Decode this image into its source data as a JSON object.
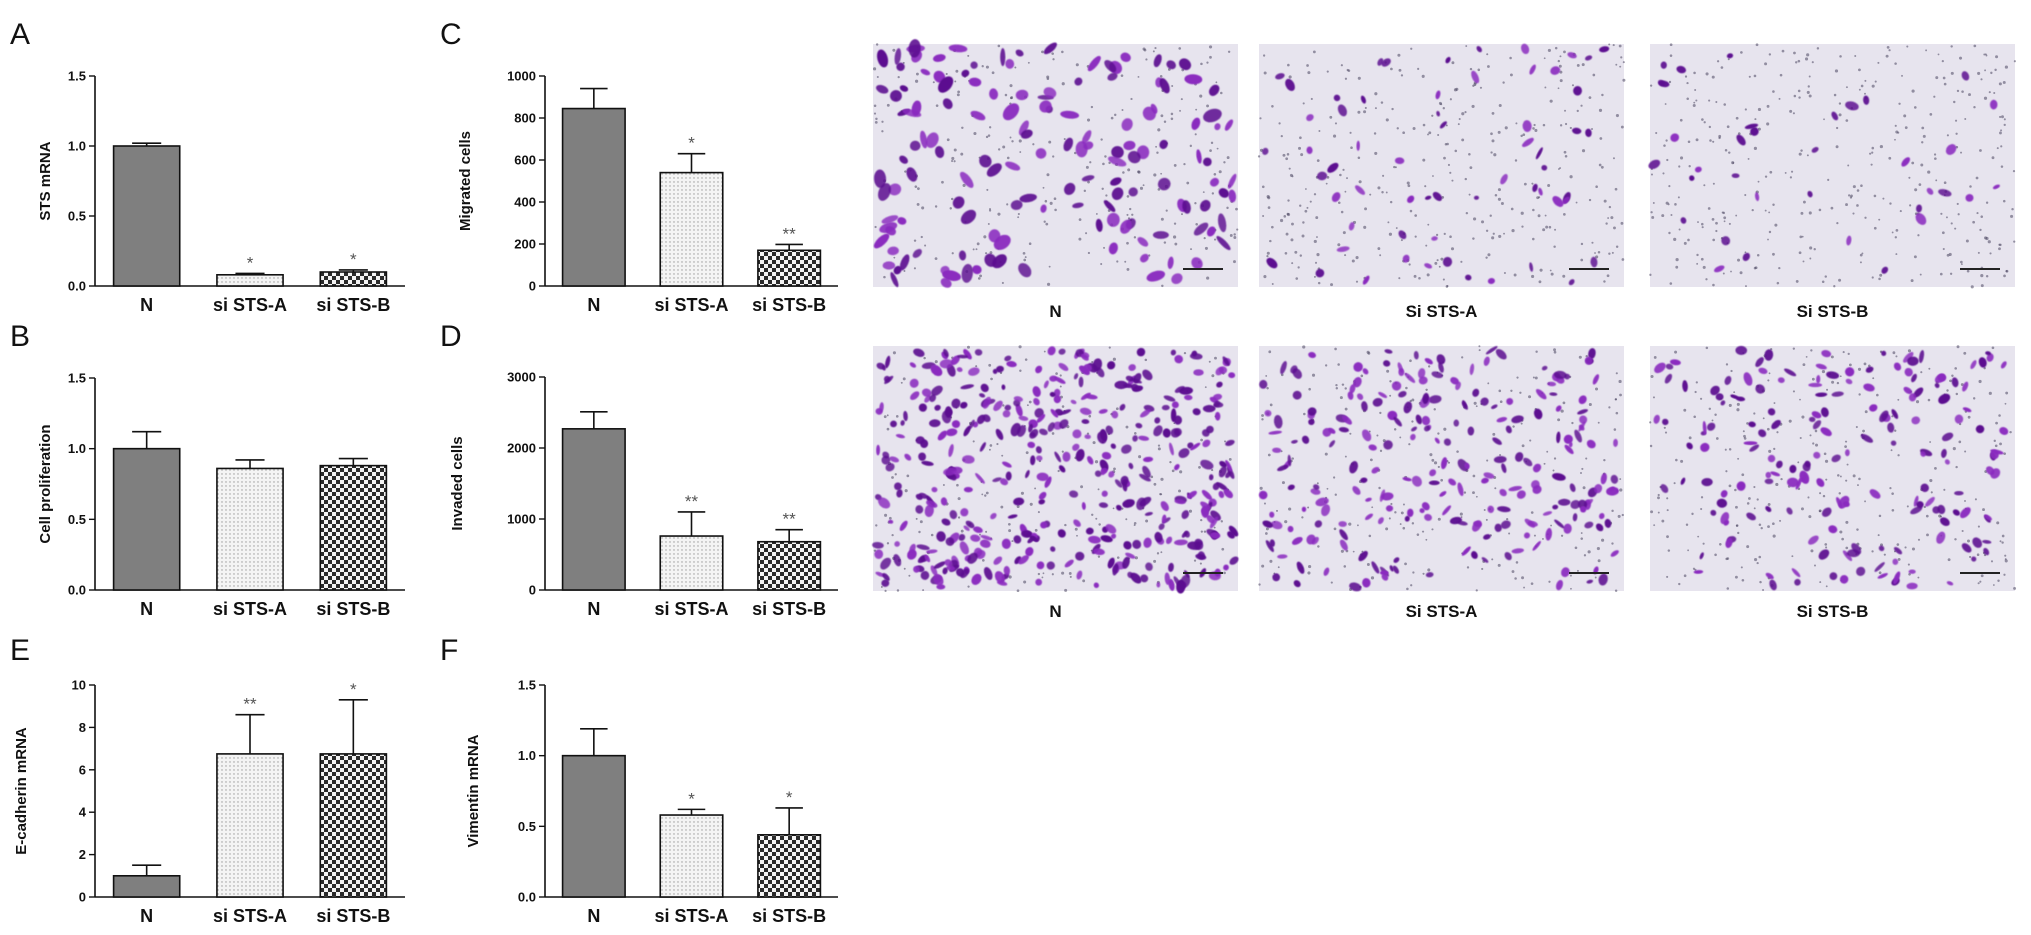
{
  "colors": {
    "bar_N": "#7f7f7f",
    "bar_A": "#f2f2f2",
    "bar_B_dark": "#2a2a2a",
    "bar_B_light": "#f4f4f4",
    "axis": "#111111",
    "star": "#555555",
    "stain": "#8a2bbf",
    "stain_dark": "#5b1190",
    "field_bg": "#e7e4ee"
  },
  "chart_data": [
    {
      "panel": "A",
      "type": "bar",
      "categories": [
        "N",
        "si STS-A",
        "si STS-B"
      ],
      "values": [
        1.0,
        0.08,
        0.1
      ],
      "errors": [
        0.02,
        0.01,
        0.015
      ],
      "significance": [
        "",
        "*",
        "*"
      ],
      "ylabel": "STS mRNA",
      "ylim": [
        0,
        1.5
      ],
      "yticks": [
        "0.0",
        "0.5",
        "1.0",
        "1.5"
      ],
      "ytick_values": [
        0,
        0.5,
        1.0,
        1.5
      ]
    },
    {
      "panel": "B",
      "type": "bar",
      "categories": [
        "N",
        "si STS-A",
        "si STS-B"
      ],
      "values": [
        1.0,
        0.86,
        0.88
      ],
      "errors": [
        0.12,
        0.06,
        0.05
      ],
      "significance": [
        "",
        "",
        ""
      ],
      "ylabel": "Cell proliferation",
      "ylim": [
        0,
        1.5
      ],
      "yticks": [
        "0.0",
        "0.5",
        "1.0",
        "1.5"
      ],
      "ytick_values": [
        0,
        0.5,
        1.0,
        1.5
      ]
    },
    {
      "panel": "C",
      "type": "bar",
      "categories": [
        "N",
        "si STS-A",
        "si STS-B"
      ],
      "values": [
        845,
        540,
        170
      ],
      "errors": [
        95,
        90,
        28
      ],
      "significance": [
        "",
        "*",
        "**"
      ],
      "ylabel": "Migrated cells",
      "ylim": [
        0,
        1000
      ],
      "yticks": [
        "0",
        "200",
        "400",
        "600",
        "800",
        "1000"
      ],
      "ytick_values": [
        0,
        200,
        400,
        600,
        800,
        1000
      ]
    },
    {
      "panel": "D",
      "type": "bar",
      "categories": [
        "N",
        "si STS-A",
        "si STS-B"
      ],
      "values": [
        2270,
        760,
        680
      ],
      "errors": [
        240,
        340,
        170
      ],
      "significance": [
        "",
        "**",
        "**"
      ],
      "ylabel": "Invaded cells",
      "ylim": [
        0,
        3000
      ],
      "yticks": [
        "0",
        "1000",
        "2000",
        "3000"
      ],
      "ytick_values": [
        0,
        1000,
        2000,
        3000
      ]
    },
    {
      "panel": "E",
      "type": "bar",
      "categories": [
        "N",
        "si STS-A",
        "si STS-B"
      ],
      "values": [
        1.0,
        6.75,
        6.75
      ],
      "errors": [
        0.5,
        1.85,
        2.55
      ],
      "significance": [
        "",
        "**",
        "*"
      ],
      "ylabel": "E-cadherin mRNA",
      "ylim": [
        0,
        10
      ],
      "yticks": [
        "0",
        "2",
        "4",
        "6",
        "8",
        "10"
      ],
      "ytick_values": [
        0,
        2,
        4,
        6,
        8,
        10
      ]
    },
    {
      "panel": "F",
      "type": "bar",
      "categories": [
        "N",
        "si STS-A",
        "si STS-B"
      ],
      "values": [
        1.0,
        0.58,
        0.44
      ],
      "errors": [
        0.19,
        0.04,
        0.19
      ],
      "significance": [
        "",
        "*",
        "*"
      ],
      "ylabel": "Vimentin mRNA",
      "ylim": [
        0,
        1.5
      ],
      "yticks": [
        "0.0",
        "0.5",
        "1.0",
        "1.5"
      ],
      "ytick_values": [
        0,
        0.5,
        1.0,
        1.5
      ]
    }
  ],
  "micrographs": {
    "labels": [
      "N",
      "Si STS-A",
      "Si STS-B"
    ],
    "rows": [
      {
        "row": "migration",
        "cell_density": [
          140,
          60,
          35
        ],
        "dot_density": [
          260,
          340,
          360
        ]
      },
      {
        "row": "invasion",
        "cell_density": [
          420,
          230,
          170
        ],
        "dot_density": [
          200,
          260,
          300
        ]
      }
    ]
  }
}
